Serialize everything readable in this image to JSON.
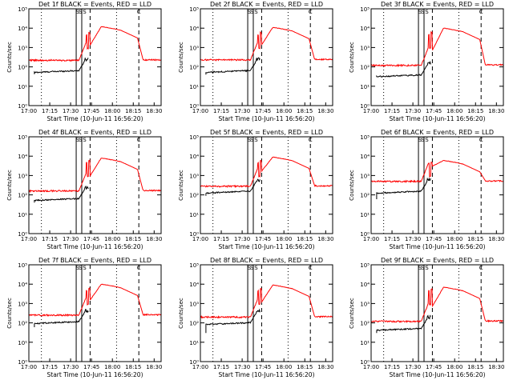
{
  "chart_data": {
    "type": "line",
    "x_ticks": [
      "17:00",
      "17:15",
      "17:30",
      "17:45",
      "18:00",
      "18:15",
      "18:30"
    ],
    "x_tick_minutes": [
      0,
      15,
      30,
      45,
      60,
      75,
      90
    ],
    "x_range_minutes": [
      0,
      95
    ],
    "y_scale": "log",
    "y_range": [
      1,
      100000
    ],
    "y_ticks": [
      "10⁰",
      "10¹",
      "10²",
      "10³",
      "10⁴",
      "10⁵"
    ],
    "ylabel": "Counts/sec",
    "xlabel": "Start Time (10-Jun-11 16:56:20)",
    "series_names": {
      "black": "Events",
      "red": "LLD"
    },
    "colors": {
      "black": "#000000",
      "red": "#ff0000"
    },
    "marker_labels": [
      "S",
      "S",
      "S",
      "C"
    ],
    "solid_markers_min": [
      34.0,
      38.0
    ],
    "dashed_markers_min": [
      44.0,
      79.0
    ],
    "dotted_markers_min": [
      9.0,
      63.0
    ],
    "panels": [
      {
        "title": "Det 1f BLACK = Events, RED = LLD",
        "red_base": 220,
        "black_base": 50,
        "red_peak": 12000,
        "black_flag": 42
      },
      {
        "title": "Det 2f BLACK = Events, RED = LLD",
        "red_base": 230,
        "black_base": 50,
        "red_peak": 11000,
        "black_flag": 40
      },
      {
        "title": "Det 3f BLACK = Events, RED = LLD",
        "red_base": 120,
        "black_base": 30,
        "red_peak": 10000,
        "black_flag": 30
      },
      {
        "title": "Det 4f BLACK = Events, RED = LLD",
        "red_base": 160,
        "black_base": 50,
        "red_peak": 8000,
        "black_flag": 40
      },
      {
        "title": "Det 5f BLACK = Events, RED = LLD",
        "red_base": 280,
        "black_base": 120,
        "red_peak": 9000,
        "black_flag": 90
      },
      {
        "title": "Det 6f BLACK = Events, RED = LLD",
        "red_base": 500,
        "black_base": 120,
        "red_peak": 6000,
        "black_flag": 60
      },
      {
        "title": "Det 7f BLACK = Events, RED = LLD",
        "red_base": 250,
        "black_base": 90,
        "red_peak": 10000,
        "black_flag": 60
      },
      {
        "title": "Det 8f BLACK = Events, RED = LLD",
        "red_base": 200,
        "black_base": 80,
        "red_peak": 9000,
        "black_flag": 30
      },
      {
        "title": "Det 9f BLACK = Events, RED = LLD",
        "red_base": 120,
        "black_base": 40,
        "red_peak": 7000,
        "black_flag": 30
      }
    ]
  }
}
